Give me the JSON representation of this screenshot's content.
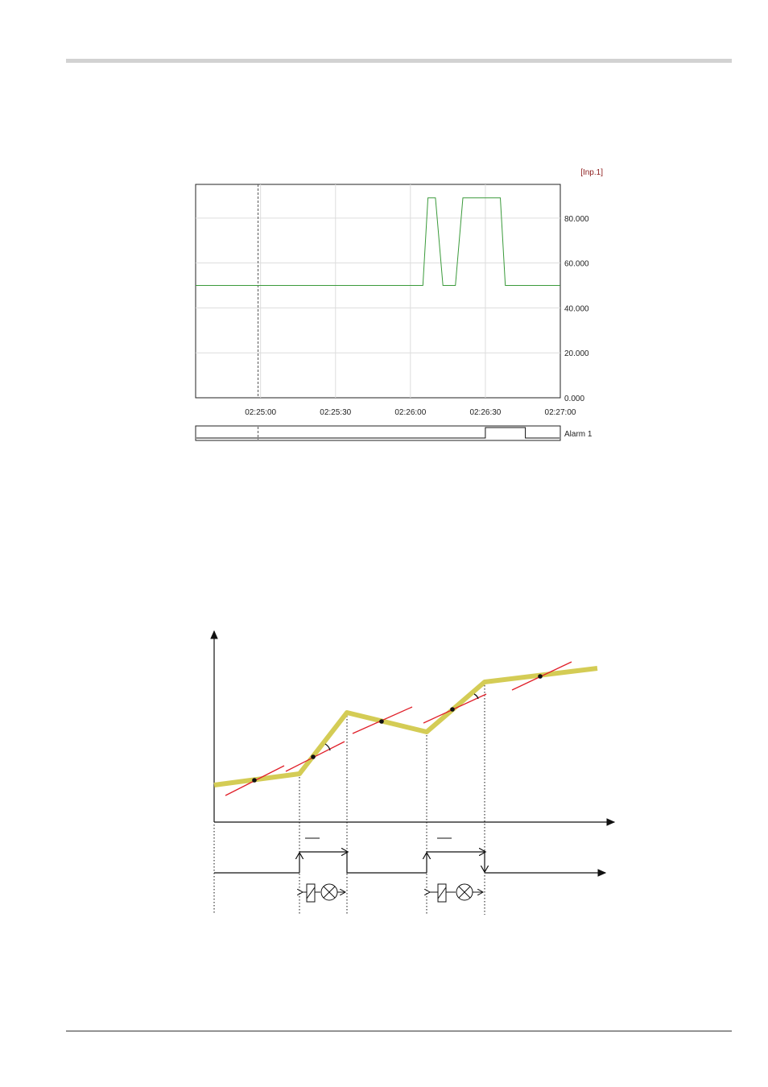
{
  "chart_data": [
    {
      "type": "line",
      "title": "",
      "xlabel": "",
      "ylabel": "",
      "unit_label": "[Inp.1]",
      "x_ticks": [
        "02:25:00",
        "02:25:30",
        "02:26:00",
        "02:26:30",
        "02:27:00"
      ],
      "y_ticks": [
        "0.000",
        "20.000",
        "40.000",
        "60.000",
        "80.000"
      ],
      "xlim": [
        "02:24:34",
        "02:27:00"
      ],
      "ylim": [
        0,
        95
      ],
      "grid": true,
      "line_color": "#3a9a3a",
      "cursor_time": "02:24:59",
      "series": [
        {
          "name": "",
          "points": [
            [
              "02:24:34",
              50
            ],
            [
              "02:26:05",
              50
            ],
            [
              "02:26:07",
              89
            ],
            [
              "02:26:10",
              89
            ],
            [
              "02:26:13",
              50
            ],
            [
              "02:26:18",
              50
            ],
            [
              "02:26:21",
              89
            ],
            [
              "02:26:36",
              89
            ],
            [
              "02:26:38",
              50
            ],
            [
              "02:27:00",
              50
            ]
          ]
        }
      ],
      "alarm_track": {
        "label": "Alarm 1",
        "on_intervals": [
          [
            "02:26:30",
            "02:26:46"
          ]
        ]
      }
    },
    {
      "type": "diagram",
      "colors": {
        "signal": "#d4cc55",
        "tangent": "#e0202a",
        "axes": "#111111"
      }
    }
  ]
}
